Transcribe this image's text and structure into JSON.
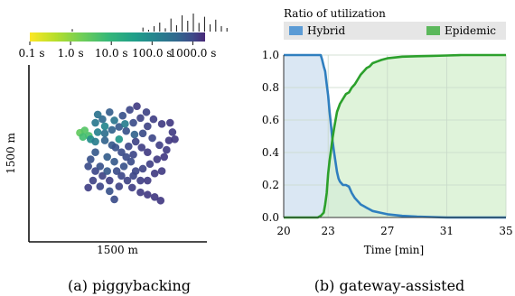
{
  "colors": {
    "hybrid": "#2f7fbf",
    "hybrid_fill": "#cfe0ef",
    "epidemic": "#2ca02c",
    "epidemic_fill": "#d6efd0",
    "overlap_fill": "#9fc8b0"
  },
  "chart_data": [
    {
      "type": "scatter",
      "caption": "(a) piggybacking",
      "xlabel": "1500 m",
      "ylabel": "1500 m",
      "colorbar": {
        "colormap": "viridis-reversed",
        "scale": "log",
        "tick_labels": [
          "0.1 s",
          "1.0 s",
          "10.0 s",
          "100.0 s",
          "1000.0 s"
        ],
        "tick_values": [
          0.1,
          1,
          10,
          100,
          1000
        ],
        "range": [
          0.1,
          2000
        ],
        "histogram_above": true
      },
      "xlim": [
        0,
        1500
      ],
      "ylim": [
        0,
        1500
      ],
      "points": [
        [
          430,
          925,
          1.5
        ],
        [
          470,
          945,
          2
        ],
        [
          505,
          900,
          2.5
        ],
        [
          520,
          870,
          30
        ],
        [
          560,
          850,
          60
        ],
        [
          455,
          890,
          3
        ],
        [
          580,
          930,
          50
        ],
        [
          640,
          920,
          120
        ],
        [
          700,
          950,
          200
        ],
        [
          760,
          975,
          300
        ],
        [
          820,
          940,
          400
        ],
        [
          880,
          1010,
          500
        ],
        [
          940,
          1050,
          700
        ],
        [
          620,
          1040,
          150
        ],
        [
          680,
          1100,
          250
        ],
        [
          560,
          1010,
          80
        ],
        [
          720,
          1030,
          90
        ],
        [
          790,
          1070,
          400
        ],
        [
          850,
          1120,
          600
        ],
        [
          910,
          1150,
          900
        ],
        [
          1050,
          1040,
          800
        ],
        [
          1120,
          1000,
          900
        ],
        [
          1000,
          980,
          700
        ],
        [
          960,
          920,
          500
        ],
        [
          1040,
          880,
          600
        ],
        [
          1100,
          820,
          800
        ],
        [
          1160,
          780,
          900
        ],
        [
          1210,
          930,
          900
        ],
        [
          1190,
          1010,
          1000
        ],
        [
          640,
          860,
          200
        ],
        [
          700,
          820,
          300
        ],
        [
          760,
          870,
          20
        ],
        [
          730,
          800,
          400
        ],
        [
          780,
          760,
          500
        ],
        [
          840,
          810,
          600
        ],
        [
          900,
          850,
          700
        ],
        [
          950,
          800,
          800
        ],
        [
          1000,
          760,
          900
        ],
        [
          560,
          760,
          300
        ],
        [
          520,
          700,
          400
        ],
        [
          500,
          640,
          500
        ],
        [
          560,
          600,
          600
        ],
        [
          620,
          560,
          700
        ],
        [
          680,
          520,
          800
        ],
        [
          740,
          600,
          500
        ],
        [
          800,
          640,
          400
        ],
        [
          860,
          680,
          500
        ],
        [
          900,
          600,
          600
        ],
        [
          960,
          620,
          700
        ],
        [
          1020,
          660,
          800
        ],
        [
          1080,
          700,
          900
        ],
        [
          1140,
          720,
          1000
        ],
        [
          720,
          680,
          300
        ],
        [
          780,
          560,
          600
        ],
        [
          830,
          520,
          700
        ],
        [
          870,
          460,
          800
        ],
        [
          940,
          420,
          900
        ],
        [
          1000,
          400,
          1000
        ],
        [
          1060,
          380,
          1000
        ],
        [
          1110,
          350,
          1000
        ],
        [
          680,
          430,
          400
        ],
        [
          720,
          360,
          500
        ],
        [
          660,
          600,
          300
        ],
        [
          600,
          640,
          400
        ],
        [
          540,
          520,
          700
        ],
        [
          500,
          460,
          800
        ],
        [
          600,
          470,
          600
        ],
        [
          760,
          470,
          700
        ],
        [
          940,
          520,
          800
        ],
        [
          1000,
          520,
          900
        ],
        [
          880,
          560,
          600
        ],
        [
          1180,
          860,
          1000
        ],
        [
          1230,
          870,
          1000
        ],
        [
          580,
          1080,
          100
        ],
        [
          810,
          1000,
          60
        ],
        [
          890,
          910,
          200
        ],
        [
          640,
          980,
          40
        ],
        [
          990,
          1100,
          700
        ],
        [
          660,
          720,
          250
        ],
        [
          1120,
          600,
          900
        ],
        [
          1060,
          580,
          900
        ],
        [
          820,
          720,
          500
        ],
        [
          880,
          740,
          600
        ]
      ],
      "histogram": [
        0.14,
        0.22,
        0.1,
        0.3,
        0.5,
        0.18,
        0.72,
        0.35,
        0.9,
        0.6,
        1.0,
        0.48,
        0.82,
        0.4,
        0.66,
        0.3,
        0.2
      ]
    },
    {
      "type": "area",
      "caption": "(b) gateway-assisted",
      "title": "Ratio of utilization",
      "xlabel": "Time [min]",
      "ylabel": "",
      "xlim": [
        20,
        35
      ],
      "ylim": [
        0,
        1
      ],
      "xticks": [
        20,
        23,
        27,
        31,
        35
      ],
      "yticks": [
        0.0,
        0.2,
        0.4,
        0.6,
        0.8,
        1.0
      ],
      "grid": true,
      "legend": "top",
      "series": [
        {
          "name": "Hybrid",
          "x": [
            20,
            22.5,
            22.6,
            22.7,
            22.8,
            22.9,
            23.0,
            23.1,
            23.2,
            23.3,
            23.4,
            23.5,
            23.6,
            23.7,
            23.8,
            23.9,
            24.0,
            24.2,
            24.4,
            24.6,
            24.8,
            25.0,
            25.2,
            25.4,
            25.6,
            25.8,
            26.0,
            26.5,
            27.0,
            27.5,
            28,
            29,
            30,
            31,
            35
          ],
          "y": [
            1.0,
            1.0,
            0.97,
            0.93,
            0.9,
            0.82,
            0.75,
            0.65,
            0.56,
            0.47,
            0.4,
            0.34,
            0.28,
            0.24,
            0.22,
            0.21,
            0.2,
            0.2,
            0.19,
            0.15,
            0.12,
            0.1,
            0.08,
            0.07,
            0.06,
            0.05,
            0.04,
            0.03,
            0.02,
            0.015,
            0.01,
            0.005,
            0.003,
            0.0,
            0.0
          ]
        },
        {
          "name": "Epidemic",
          "x": [
            20,
            22.3,
            22.5,
            22.7,
            22.8,
            22.9,
            23.0,
            23.1,
            23.2,
            23.3,
            23.4,
            23.5,
            23.6,
            23.8,
            24.0,
            24.2,
            24.4,
            24.6,
            24.8,
            25.0,
            25.2,
            25.4,
            25.6,
            25.8,
            26.0,
            26.3,
            26.6,
            27.0,
            27.5,
            28,
            29,
            30,
            31,
            32,
            35
          ],
          "y": [
            0.0,
            0.0,
            0.01,
            0.03,
            0.08,
            0.15,
            0.27,
            0.35,
            0.42,
            0.49,
            0.55,
            0.6,
            0.65,
            0.7,
            0.73,
            0.76,
            0.77,
            0.8,
            0.82,
            0.85,
            0.88,
            0.9,
            0.92,
            0.93,
            0.95,
            0.96,
            0.97,
            0.98,
            0.985,
            0.99,
            0.993,
            0.995,
            0.997,
            1.0,
            1.0
          ]
        }
      ]
    }
  ]
}
